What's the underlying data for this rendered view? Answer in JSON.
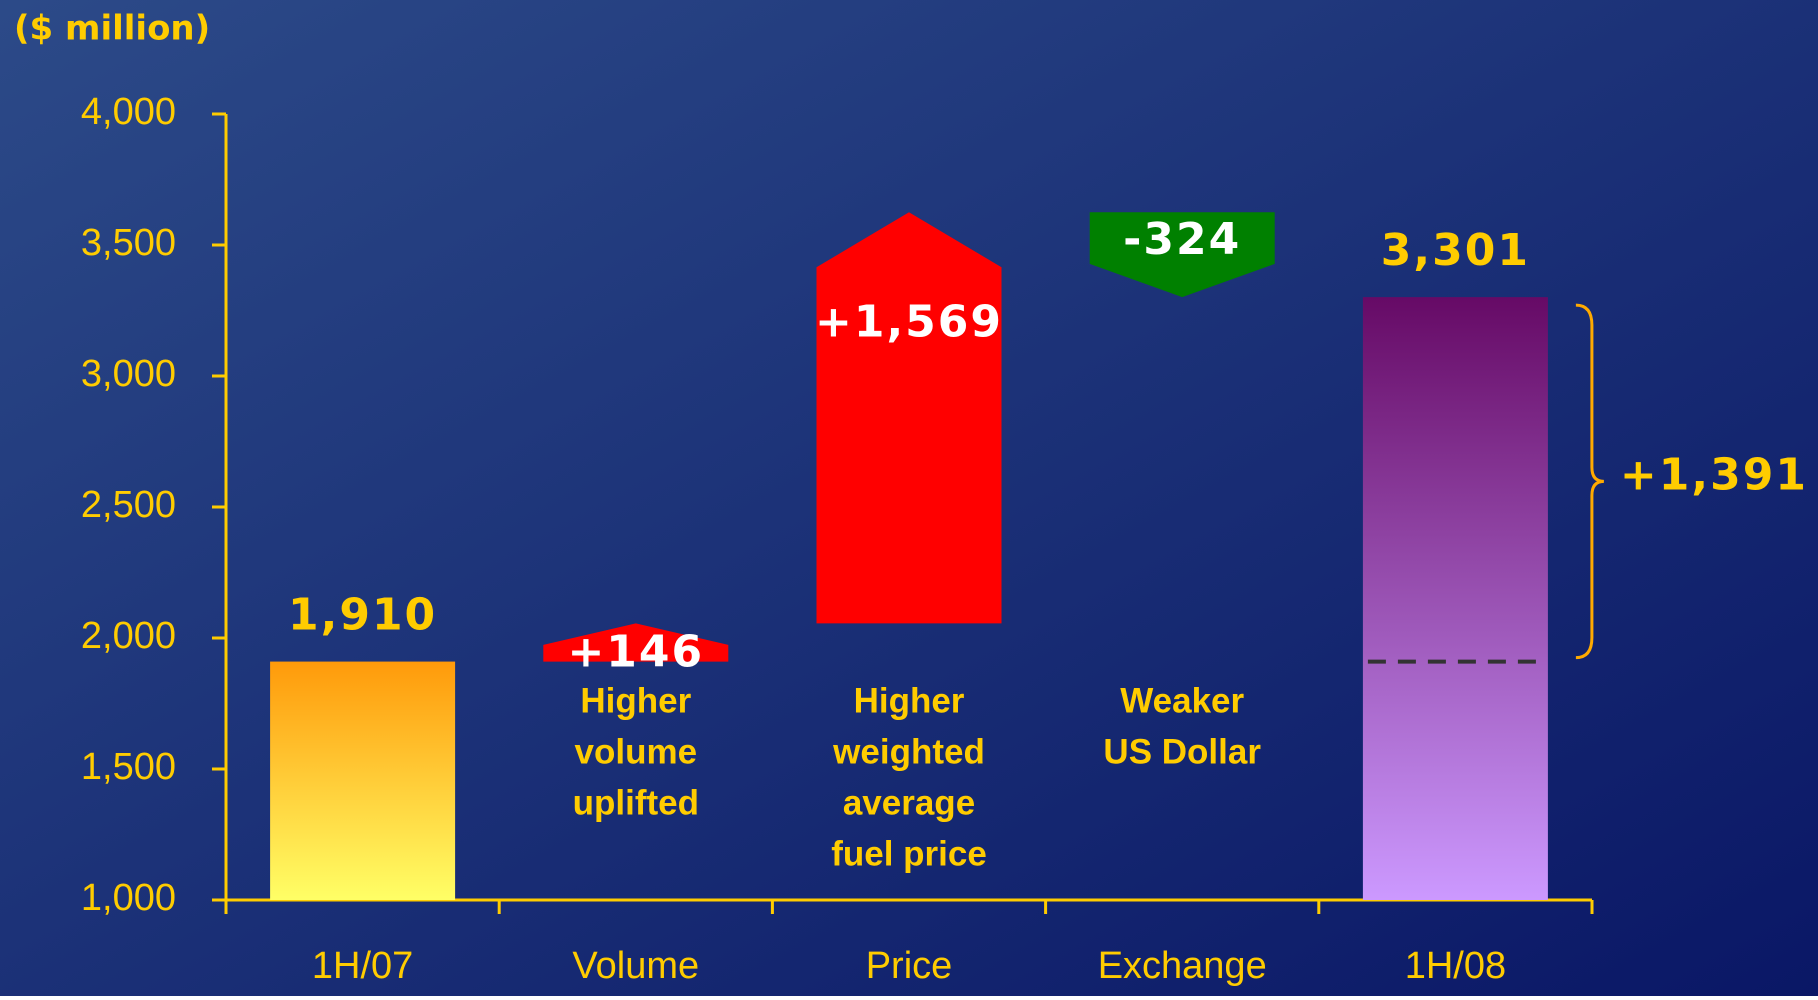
{
  "chart_data": {
    "type": "waterfall",
    "axis_label": "($ million)",
    "categories": [
      "1H/07",
      "Volume",
      "Price",
      "Exchange",
      "1H/08"
    ],
    "values": [
      1910,
      146,
      1569,
      -324,
      3301
    ],
    "value_labels": [
      "1,910",
      "+146",
      "+1,569",
      "-324",
      "3,301"
    ],
    "kinds": [
      "total",
      "change",
      "change",
      "change",
      "total"
    ],
    "colors": [
      [
        "#ff9a0a",
        "#ffff66"
      ],
      "#ff0000",
      "#ff0000",
      "#008000",
      [
        "#660a66",
        "#cc99ff"
      ]
    ],
    "descriptions": [
      null,
      [
        "Higher",
        "volume",
        "uplifted"
      ],
      [
        "Higher",
        "weighted",
        "average",
        "fuel price"
      ],
      [
        "Weaker",
        "US Dollar"
      ],
      null
    ],
    "annotation": "+1,391",
    "ylim": [
      1000,
      4000
    ],
    "yticks": [
      {
        "value": 1000,
        "label": "1,000"
      },
      {
        "value": 1500,
        "label": "1,500"
      },
      {
        "value": 2000,
        "label": "2,000"
      },
      {
        "value": 2500,
        "label": "2,500"
      },
      {
        "value": 3000,
        "label": "3,000"
      },
      {
        "value": 3500,
        "label": "3,500"
      },
      {
        "value": 4000,
        "label": "4,000"
      }
    ]
  }
}
